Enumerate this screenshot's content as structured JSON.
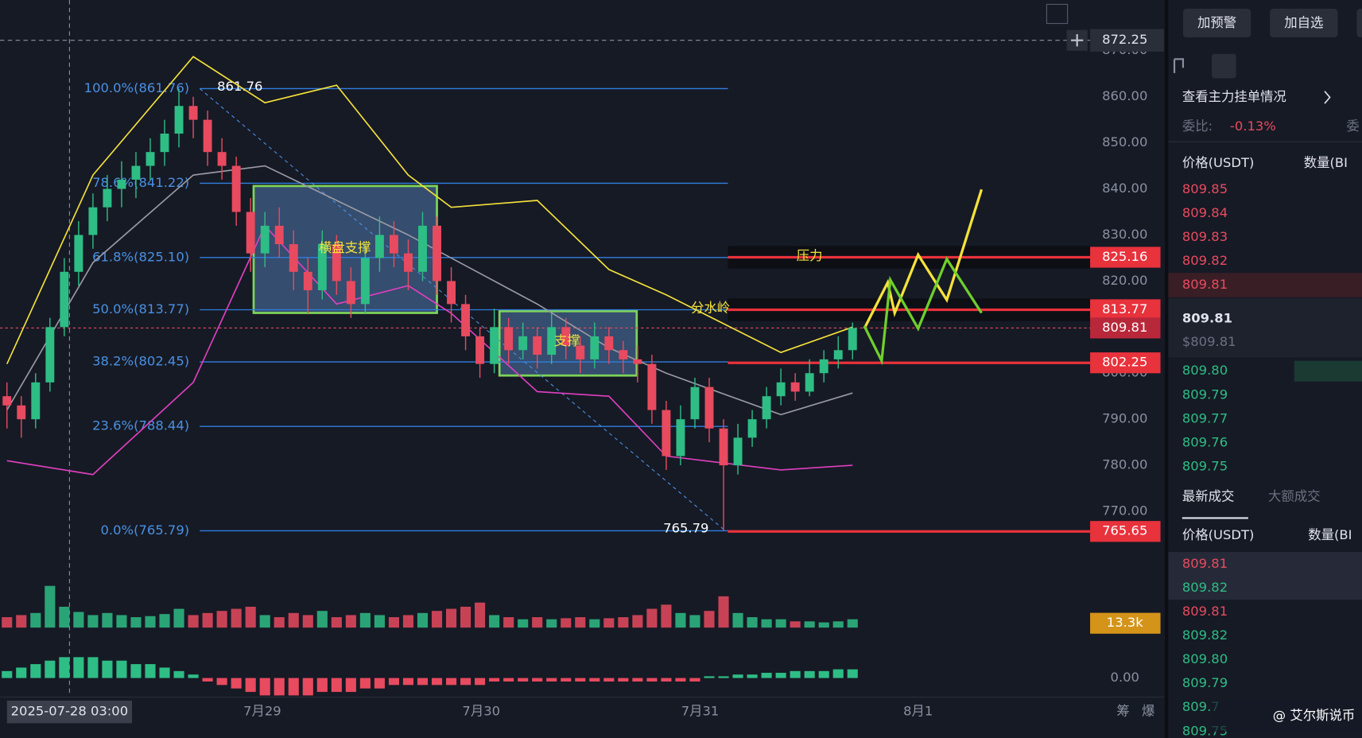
{
  "chart_data": {
    "type": "candlestick",
    "ylim": [
      760,
      881
    ],
    "yticks": [
      {
        "value": 870,
        "label": "870.00"
      },
      {
        "value": 860,
        "label": "860.00"
      },
      {
        "value": 850,
        "label": "850.00"
      },
      {
        "value": 840,
        "label": "840.00"
      },
      {
        "value": 830,
        "label": "830.00"
      },
      {
        "value": 820,
        "label": "820.00"
      },
      {
        "value": 810,
        "label": "810.00"
      },
      {
        "value": 800,
        "label": "800.00"
      },
      {
        "value": 790,
        "label": "790.00"
      },
      {
        "value": 780,
        "label": "780.00"
      },
      {
        "value": 770,
        "label": "770.00"
      }
    ],
    "candles": [
      [
        795,
        798,
        788,
        793
      ],
      [
        793,
        795,
        786,
        790
      ],
      [
        790,
        800,
        788,
        798
      ],
      [
        798,
        812,
        796,
        810
      ],
      [
        810,
        825,
        808,
        822
      ],
      [
        822,
        833,
        819,
        830
      ],
      [
        830,
        839,
        827,
        836
      ],
      [
        836,
        843,
        833,
        840
      ],
      [
        840,
        846,
        836,
        842
      ],
      [
        842,
        848,
        838,
        845
      ],
      [
        845,
        851,
        842,
        848
      ],
      [
        848,
        855,
        845,
        852
      ],
      [
        852,
        861.76,
        849,
        858
      ],
      [
        858,
        860,
        851,
        855
      ],
      [
        855,
        857,
        845,
        848
      ],
      [
        848,
        851,
        842,
        845
      ],
      [
        845,
        847,
        832,
        835
      ],
      [
        835,
        838,
        822,
        826
      ],
      [
        826,
        835,
        823,
        832
      ],
      [
        832,
        836,
        825,
        828
      ],
      [
        828,
        831,
        818,
        822
      ],
      [
        822,
        825,
        813,
        818
      ],
      [
        818,
        831,
        816,
        828
      ],
      [
        828,
        830,
        817,
        820
      ],
      [
        820,
        823,
        812,
        815
      ],
      [
        815,
        828,
        813,
        825
      ],
      [
        825,
        834,
        822,
        830
      ],
      [
        830,
        833,
        823,
        826
      ],
      [
        826,
        829,
        818,
        822
      ],
      [
        822,
        835,
        820,
        832
      ],
      [
        832,
        834,
        817,
        820
      ],
      [
        820,
        823,
        811,
        815
      ],
      [
        815,
        817,
        805,
        808
      ],
      [
        808,
        810,
        799,
        802
      ],
      [
        802,
        814,
        800,
        810
      ],
      [
        810,
        812,
        802,
        805
      ],
      [
        805,
        811,
        803,
        808
      ],
      [
        808,
        810,
        801,
        804
      ],
      [
        804,
        813,
        802,
        810
      ],
      [
        810,
        812,
        803,
        806
      ],
      [
        806,
        808,
        800,
        803
      ],
      [
        803,
        811,
        801,
        808
      ],
      [
        808,
        810,
        802,
        805
      ],
      [
        805,
        807,
        800,
        803
      ],
      [
        803,
        806,
        798,
        802
      ],
      [
        802,
        804,
        789,
        792
      ],
      [
        792,
        794,
        779,
        782
      ],
      [
        782,
        793,
        780,
        790
      ],
      [
        790,
        799,
        788,
        797
      ],
      [
        797,
        799,
        785,
        788
      ],
      [
        788,
        790,
        765.79,
        780
      ],
      [
        780,
        789,
        778,
        786
      ],
      [
        786,
        792,
        784,
        790
      ],
      [
        790,
        797,
        788,
        795
      ],
      [
        795,
        801,
        793,
        798
      ],
      [
        798,
        800,
        794,
        796
      ],
      [
        796,
        803,
        795,
        800
      ],
      [
        800,
        805,
        798,
        803
      ],
      [
        803,
        808,
        801,
        805
      ],
      [
        805,
        811,
        803,
        809.81
      ]
    ],
    "volume": [
      10,
      12,
      14,
      40,
      20,
      15,
      12,
      14,
      12,
      10,
      11,
      13,
      18,
      12,
      14,
      16,
      18,
      20,
      12,
      10,
      14,
      12,
      16,
      10,
      12,
      14,
      12,
      10,
      12,
      14,
      16,
      18,
      20,
      24,
      12,
      10,
      8,
      10,
      8,
      9,
      10,
      8,
      9,
      10,
      12,
      18,
      22,
      14,
      12,
      16,
      30,
      14,
      10,
      8,
      8,
      6,
      6,
      5,
      6,
      8
    ],
    "volume_label": "13.3k",
    "macd": [
      2,
      3,
      4,
      5,
      6,
      6,
      6,
      5,
      5,
      4,
      4,
      3,
      2,
      1,
      -1,
      -2,
      -3,
      -4,
      -5,
      -5,
      -5,
      -5,
      -4,
      -4,
      -4,
      -3,
      -3,
      -2,
      -2,
      -2,
      -2,
      -2,
      -2,
      -2,
      -1,
      -1,
      -1,
      -1,
      -1,
      -1,
      -1,
      -1,
      -1,
      -1,
      -1,
      -1,
      -1,
      -1,
      -1,
      0.5,
      0.5,
      1,
      1,
      1.5,
      1.5,
      2,
      2,
      2,
      2.5,
      2.5
    ],
    "macd_ticks": [
      {
        "value": 0,
        "label": "0.00"
      }
    ],
    "bollinger": {
      "x": [
        0,
        6,
        13,
        18,
        23,
        28,
        31,
        37,
        42,
        46,
        54,
        59
      ],
      "upper": [
        802,
        843,
        868.7,
        858.7,
        862.5,
        843,
        836,
        837.5,
        822.5,
        817,
        804.5,
        810
      ],
      "middle": [
        792,
        824,
        843,
        845,
        837.5,
        830,
        825,
        815,
        805.5,
        800,
        791,
        795.7
      ],
      "lower": [
        781,
        778,
        798,
        832,
        815,
        819,
        813,
        796,
        795,
        782,
        779,
        780
      ]
    },
    "fib": [
      {
        "label": "100.0%(861.76)",
        "value": 861.76
      },
      {
        "label": "78.6%(841.22)",
        "value": 841.22
      },
      {
        "label": "61.8%(825.10)",
        "value": 825.1
      },
      {
        "label": "50.0%(813.77)",
        "value": 813.77
      },
      {
        "label": "38.2%(802.45)",
        "value": 802.45
      },
      {
        "label": "23.6%(788.44)",
        "value": 788.44
      },
      {
        "label": "0.0%(765.79)",
        "value": 765.79
      }
    ],
    "high_label": 861.76,
    "low_label": 765.79,
    "levels": [
      825.16,
      813.77,
      802.25,
      765.65
    ],
    "last_price": 809.81,
    "crosshair": 872.25,
    "annotations": [
      "横盘支撑",
      "支撑",
      "压力",
      "分水岭"
    ],
    "x_labels": [
      "7月29",
      "7月30",
      "7月31",
      "8月1"
    ],
    "crosshair_time": "2025-07-28 03:00",
    "side_tabs": [
      "筹",
      "爆"
    ]
  },
  "order_book": {
    "buttons": [
      "加预警",
      "加自选"
    ],
    "depth_link": "查看主力挂单情况",
    "ratio_label": "委比:",
    "ratio": "-0.13%",
    "ratio2": "委",
    "headers": [
      "价格(USDT)",
      "数量(BI"
    ],
    "asks": [
      "809.85",
      "809.84",
      "809.83",
      "809.82",
      "809.81"
    ],
    "price": "809.81",
    "price_usd": "$809.81",
    "bids": [
      "809.80",
      "809.79",
      "809.77",
      "809.76",
      "809.75"
    ],
    "tabs": [
      "最新成交",
      "大额成交"
    ],
    "trade_headers": [
      "价格(USDT)",
      "数量(BI"
    ],
    "trades": [
      "809.81",
      "809.82",
      "809.81",
      "809.82",
      "809.80",
      "809.79",
      "809.7",
      "809.75"
    ],
    "trade_colors": [
      "#e84a5f",
      "#2ebd85",
      "#e84a5f",
      "#2ebd85",
      "#2ebd85",
      "#2ebd85",
      "#2ebd85",
      "#2ebd85"
    ]
  },
  "watermark": "@ 艾尔斯说币"
}
